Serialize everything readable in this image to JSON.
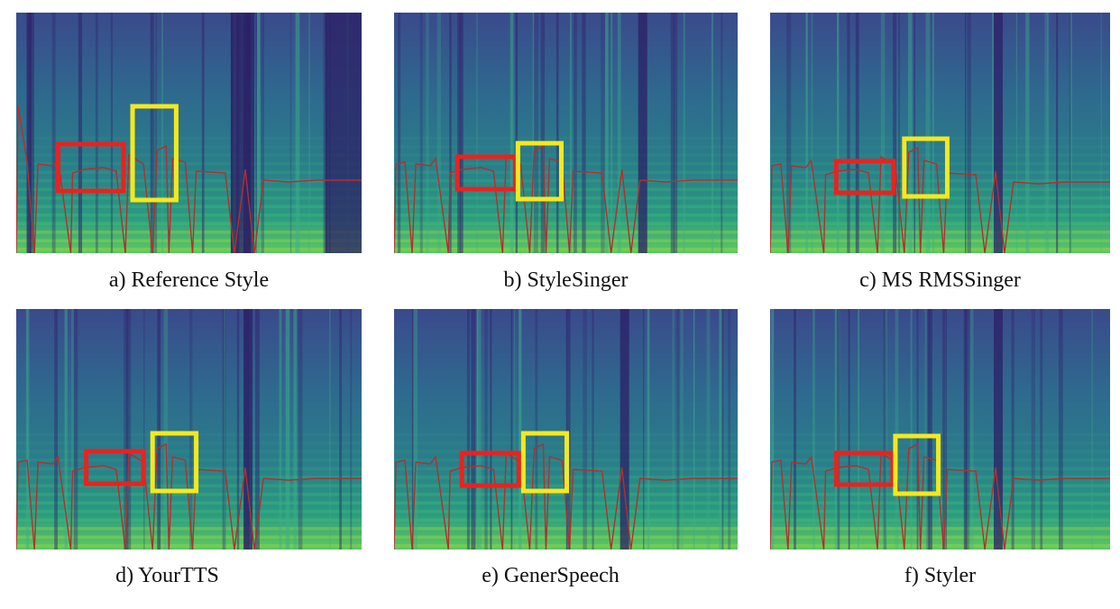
{
  "figure": {
    "panels": [
      {
        "id": "a",
        "caption": "a) Reference Style",
        "pitch_contour_color": "#b03030"
      },
      {
        "id": "b",
        "caption": "b) StyleSinger",
        "pitch_contour_color": "#b03030"
      },
      {
        "id": "c",
        "caption": "c) MS RMSSinger",
        "pitch_contour_color": "#b03030"
      },
      {
        "id": "d",
        "caption": "d) YourTTS",
        "pitch_contour_color": "#b03030"
      },
      {
        "id": "e",
        "caption": "e) GenerSpeech",
        "pitch_contour_color": "#b03030"
      },
      {
        "id": "f",
        "caption": "f) Styler",
        "pitch_contour_color": "#b03030"
      }
    ],
    "highlight_colors": {
      "red_box": "#e8231f",
      "yellow_box": "#f5e81e"
    },
    "colormap": [
      "#440154",
      "#3b528b",
      "#21918c",
      "#5ec962",
      "#fde725"
    ]
  }
}
